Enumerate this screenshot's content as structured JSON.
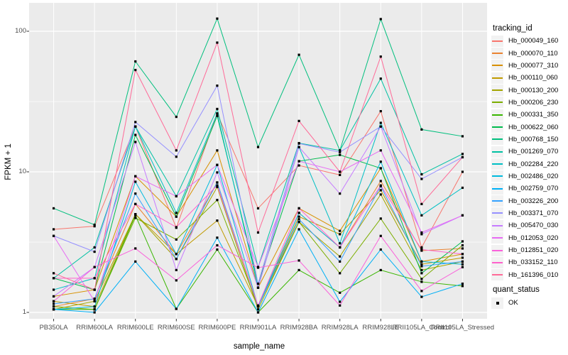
{
  "chart_data": {
    "type": "line",
    "xlabel": "sample_name",
    "ylabel": "FPKM + 1",
    "y_scale": "log10",
    "y_ticks": [
      1,
      10,
      100
    ],
    "y_minor_ticks": [
      3.1623,
      31.623
    ],
    "ylim": [
      1,
      160
    ],
    "grid": "on",
    "panel_bg": "#ebebeb",
    "grid_color": "#ffffff",
    "tick_color": "#333333",
    "tick_label_color": "#4d4d4d",
    "point_color": "#000000",
    "legend_position": "right",
    "legend_series_title": "tracking_id",
    "legend_status_title": "quant_status",
    "status_items": [
      {
        "label": "OK"
      }
    ],
    "categories": [
      "PB350LA",
      "RRIM600LA",
      "RRIM600LE",
      "RRIM600SE",
      "RRIM600PE",
      "RRIM901LA",
      "RRIM928BA",
      "RRIM928LA",
      "RRIM928LE",
      "RRII105LA_Control",
      "RRII105LA_Stressed"
    ],
    "series": [
      {
        "name": "Hb_000049_160",
        "color": "#F8766D",
        "values": [
          3.9,
          4.1,
          21,
          4.0,
          26,
          5.5,
          11.1,
          9.5,
          27,
          2.9,
          10
        ]
      },
      {
        "name": "Hb_000070_110",
        "color": "#EA8331",
        "values": [
          1.1,
          1.25,
          5.9,
          2.6,
          8.4,
          1.1,
          5.1,
          2.9,
          8.6,
          2.75,
          2.85
        ]
      },
      {
        "name": "Hb_000077_310",
        "color": "#D89000",
        "values": [
          1.3,
          1.45,
          9.3,
          4.8,
          14.2,
          1.5,
          5.5,
          3.8,
          10.6,
          2.3,
          2.6
        ]
      },
      {
        "name": "Hb_000110_060",
        "color": "#C09B00",
        "values": [
          1.2,
          1.1,
          5.0,
          2.6,
          4.5,
          1.1,
          4.8,
          3.6,
          7.4,
          2.2,
          2.45
        ]
      },
      {
        "name": "Hb_000130_200",
        "color": "#A3A500",
        "values": [
          1.05,
          1.2,
          5.0,
          2.4,
          7.8,
          1.05,
          4.4,
          2.5,
          6.9,
          2.0,
          2.3
        ]
      },
      {
        "name": "Hb_000206_230",
        "color": "#7CAE00",
        "values": [
          1.1,
          1.05,
          4.7,
          3.3,
          6.3,
          1.1,
          4.4,
          1.9,
          4.65,
          1.73,
          3.0
        ]
      },
      {
        "name": "Hb_000331_350",
        "color": "#39B600",
        "values": [
          1.05,
          1.05,
          4.9,
          1.06,
          2.8,
          1.0,
          2.0,
          1.38,
          2.0,
          1.65,
          1.54
        ]
      },
      {
        "name": "Hb_000622_060",
        "color": "#00BB4E",
        "values": [
          1.75,
          1.45,
          18.3,
          4.8,
          25,
          1.6,
          11.9,
          13.2,
          10.6,
          1.9,
          3.2
        ]
      },
      {
        "name": "Hb_000768_150",
        "color": "#00BF7D",
        "values": [
          5.5,
          4.2,
          61,
          24.6,
          123,
          15,
          68,
          14.2,
          122,
          20,
          17.9
        ]
      },
      {
        "name": "Hb_001269_070",
        "color": "#00C1A3",
        "values": [
          1.75,
          2.9,
          21,
          6.7,
          28,
          2.1,
          16,
          14.2,
          46,
          9.6,
          13.4
        ]
      },
      {
        "name": "Hb_002284_220",
        "color": "#00BFC4",
        "values": [
          1.45,
          1.75,
          21,
          5.1,
          26,
          1.5,
          15,
          3.1,
          22.3,
          4.9,
          7.7
        ]
      },
      {
        "name": "Hb_002486_020",
        "color": "#00BADE",
        "values": [
          1.05,
          1.1,
          8.5,
          2.6,
          11.2,
          1.1,
          5.1,
          2.9,
          11.8,
          2.3,
          2.2
        ]
      },
      {
        "name": "Hb_002759_070",
        "color": "#00B0F6",
        "values": [
          1.05,
          1.0,
          2.3,
          1.06,
          3.4,
          1.0,
          3.9,
          1.19,
          2.8,
          1.29,
          1.6
        ]
      },
      {
        "name": "Hb_003226_200",
        "color": "#35A2FF",
        "values": [
          1.15,
          1.25,
          7.0,
          2.4,
          8.4,
          1.1,
          4.6,
          2.3,
          7.9,
          2.13,
          2.3
        ]
      },
      {
        "name": "Hb_003371_070",
        "color": "#9590FF",
        "values": [
          3.5,
          2.7,
          22.6,
          12.8,
          41,
          1.6,
          15.9,
          13.8,
          21,
          8.9,
          12.7
        ]
      },
      {
        "name": "Hb_005470_030",
        "color": "#C77CFF",
        "values": [
          1.3,
          2.1,
          16.3,
          2.0,
          9.9,
          1.5,
          15.0,
          7.0,
          21,
          3.6,
          4.9
        ]
      },
      {
        "name": "Hb_012053_020",
        "color": "#E76BF3",
        "values": [
          3.5,
          1.2,
          9.3,
          6.7,
          11.2,
          2.1,
          11.9,
          10,
          14.2,
          3.7,
          4.9
        ]
      },
      {
        "name": "Hb_012851_020",
        "color": "#FA62DB",
        "values": [
          1.2,
          2.1,
          2.85,
          1.69,
          3.0,
          2.08,
          2.34,
          1.12,
          3.5,
          1.42,
          2.1
        ]
      },
      {
        "name": "Hb_033152_110",
        "color": "#FF61CC",
        "values": [
          1.75,
          1.75,
          5.9,
          4.04,
          8.0,
          1.12,
          5.5,
          2.9,
          8.0,
          2.8,
          2.6
        ]
      },
      {
        "name": "Hb_161396_010",
        "color": "#FF6A98",
        "values": [
          1.9,
          1.45,
          53,
          14.2,
          83,
          3.7,
          23,
          10,
          66,
          5.9,
          12.7
        ]
      }
    ]
  }
}
